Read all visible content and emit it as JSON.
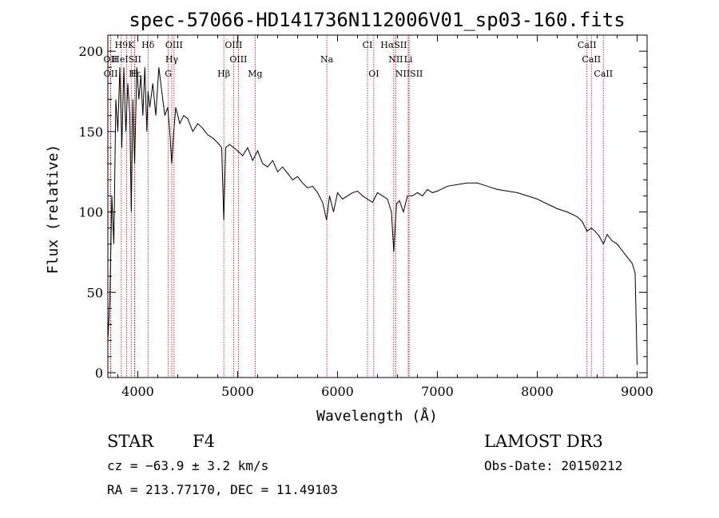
{
  "chart_data": {
    "type": "line",
    "title": "spec-57066-HD141736N112006V01_sp03-160.fits",
    "xlabel": "Wavelength (Å)",
    "ylabel": "Flux (relative)",
    "xlim": [
      3700,
      9100
    ],
    "ylim": [
      -3,
      210
    ],
    "xticks": [
      "4000",
      "5000",
      "6000",
      "7000",
      "8000",
      "9000"
    ],
    "yticks": [
      "0",
      "50",
      "100",
      "150",
      "200"
    ],
    "series": [
      {
        "x": [
          3700,
          3720,
          3740,
          3760,
          3780,
          3800,
          3820,
          3840,
          3860,
          3880,
          3900,
          3920,
          3934,
          3950,
          3968,
          3990,
          4010,
          4030,
          4050,
          4070,
          4090,
          4102,
          4120,
          4150,
          4180,
          4210,
          4240,
          4270,
          4300,
          4320,
          4340,
          4360,
          4380,
          4420,
          4460,
          4500,
          4550,
          4600,
          4650,
          4700,
          4750,
          4800,
          4840,
          4861,
          4880,
          4920,
          4960,
          5000,
          5050,
          5100,
          5150,
          5200,
          5250,
          5300,
          5350,
          5400,
          5450,
          5500,
          5550,
          5600,
          5650,
          5700,
          5750,
          5800,
          5850,
          5890,
          5920,
          5960,
          6000,
          6050,
          6100,
          6150,
          6200,
          6250,
          6300,
          6350,
          6400,
          6450,
          6500,
          6540,
          6563,
          6590,
          6620,
          6660,
          6700,
          6750,
          6800,
          6850,
          6900,
          6950,
          7000,
          7100,
          7200,
          7300,
          7400,
          7500,
          7600,
          7700,
          7800,
          7900,
          8000,
          8100,
          8200,
          8300,
          8400,
          8450,
          8498,
          8542,
          8580,
          8620,
          8662,
          8700,
          8750,
          8800,
          8850,
          8900,
          8950,
          8980,
          9000
        ],
        "y": [
          20,
          45,
          110,
          80,
          170,
          150,
          190,
          140,
          190,
          150,
          180,
          160,
          100,
          170,
          130,
          190,
          170,
          185,
          160,
          190,
          150,
          175,
          165,
          180,
          160,
          190,
          175,
          160,
          165,
          150,
          130,
          150,
          165,
          155,
          160,
          158,
          150,
          155,
          152,
          148,
          146,
          143,
          140,
          95,
          140,
          142,
          140,
          138,
          135,
          140,
          132,
          138,
          130,
          128,
          132,
          125,
          128,
          124,
          120,
          122,
          118,
          115,
          116,
          112,
          106,
          95,
          110,
          100,
          112,
          108,
          110,
          112,
          113,
          110,
          108,
          106,
          112,
          110,
          108,
          100,
          75,
          105,
          107,
          100,
          110,
          110,
          112,
          110,
          114,
          112,
          113,
          116,
          117,
          118,
          118,
          116,
          114,
          113,
          112,
          110,
          108,
          105,
          102,
          100,
          97,
          94,
          88,
          90,
          88,
          85,
          80,
          86,
          82,
          80,
          76,
          72,
          68,
          62,
          5
        ]
      }
    ],
    "spectral_lines": [
      {
        "label": "H9",
        "x": 3835,
        "row": 0
      },
      {
        "label": "K",
        "x": 3934,
        "row": 0
      },
      {
        "label": "Hδ",
        "x": 4102,
        "row": 0
      },
      {
        "label": "OIII",
        "x": 4363,
        "row": 0
      },
      {
        "label": "OIII",
        "x": 4959,
        "row": 0
      },
      {
        "label": "CI",
        "x": 6300,
        "row": 0
      },
      {
        "label": "HαSII",
        "x": 6563,
        "row": 0
      },
      {
        "label": "CaII",
        "x": 8498,
        "row": 0
      },
      {
        "label": "OII",
        "x": 3727,
        "row": 1
      },
      {
        "label": "HeISII",
        "x": 3889,
        "row": 1
      },
      {
        "label": "Hγ",
        "x": 4340,
        "row": 1
      },
      {
        "label": "OIII",
        "x": 5007,
        "row": 1
      },
      {
        "label": "Na",
        "x": 5893,
        "row": 1
      },
      {
        "label": "NII",
        "x": 6583,
        "row": 1
      },
      {
        "label": "Li",
        "x": 6708,
        "row": 1
      },
      {
        "label": "CaII",
        "x": 8542,
        "row": 1
      },
      {
        "label": "OII",
        "x": 3729,
        "row": 2
      },
      {
        "label": "Hε",
        "x": 3970,
        "row": 2
      },
      {
        "label": "H",
        "x": 3968,
        "row": 2
      },
      {
        "label": "G",
        "x": 4305,
        "row": 2
      },
      {
        "label": "Hβ",
        "x": 4861,
        "row": 2
      },
      {
        "label": "Mg",
        "x": 5175,
        "row": 2
      },
      {
        "label": "OI",
        "x": 6363,
        "row": 2
      },
      {
        "label": "NIISII",
        "x": 6717,
        "row": 2
      },
      {
        "label": "CaII",
        "x": 8662,
        "row": 2
      }
    ]
  },
  "info": {
    "class": "STAR",
    "subclass": "F4",
    "cz": "cz = −63.9 ± 3.2 km/s",
    "radec": "RA = 213.77170, DEC =  11.49103",
    "survey": "LAMOST DR3",
    "obsdate": "Obs-Date: 20150212"
  },
  "colors": {
    "spectrum": "#000000",
    "line_marker": "#c00000"
  }
}
